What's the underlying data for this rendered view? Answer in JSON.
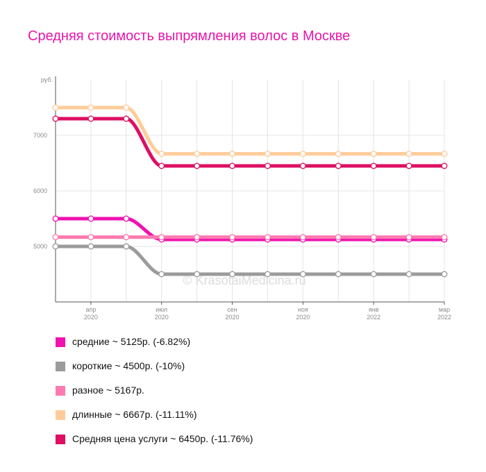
{
  "chart_data": {
    "type": "line",
    "title": "Средняя стоимость выпрямления волос в Москве",
    "y_unit_label": "руб.",
    "ylim": [
      4000,
      8000
    ],
    "y_ticks": [
      "5000",
      "6000",
      "7000"
    ],
    "x_ticks": [
      {
        "month": "апр",
        "year": "2020",
        "index": 1
      },
      {
        "month": "июл",
        "year": "2020",
        "index": 3
      },
      {
        "month": "сен",
        "year": "2020",
        "index": 5
      },
      {
        "month": "ноя",
        "year": "2020",
        "index": 7
      },
      {
        "month": "янв",
        "year": "2022",
        "index": 9
      },
      {
        "month": "мар",
        "year": "2022",
        "index": 11
      }
    ],
    "points_count": 12,
    "watermark": "© KrasotaiMedicina.ru",
    "grid": true,
    "series": [
      {
        "name": "средние",
        "legend": "средние ~ 5125р. (-6.82%)",
        "color": "#f012b0",
        "values": [
          5500,
          5500,
          5500,
          5125,
          5125,
          5125,
          5125,
          5125,
          5125,
          5125,
          5125,
          5125
        ]
      },
      {
        "name": "короткие",
        "legend": "короткие ~ 4500р. (-10%)",
        "color": "#9b9b9b",
        "values": [
          5000,
          5000,
          5000,
          4500,
          4500,
          4500,
          4500,
          4500,
          4500,
          4500,
          4500,
          4500
        ]
      },
      {
        "name": "разное",
        "legend": "разное ~ 5167р.",
        "color": "#ff7ab0",
        "values": [
          5167,
          5167,
          5167,
          5167,
          5167,
          5167,
          5167,
          5167,
          5167,
          5167,
          5167,
          5167
        ]
      },
      {
        "name": "длинные",
        "legend": "длинные ~ 6667р. (-11.11%)",
        "color": "#ffcc99",
        "values": [
          7500,
          7500,
          7500,
          6667,
          6667,
          6667,
          6667,
          6667,
          6667,
          6667,
          6667,
          6667
        ]
      },
      {
        "name": "Средняя цена услуги",
        "legend": "Средняя цена услуги ~ 6450р. (-11.76%)",
        "color": "#dd0f62",
        "values": [
          7300,
          7300,
          7300,
          6450,
          6450,
          6450,
          6450,
          6450,
          6450,
          6450,
          6450,
          6450
        ]
      }
    ]
  }
}
